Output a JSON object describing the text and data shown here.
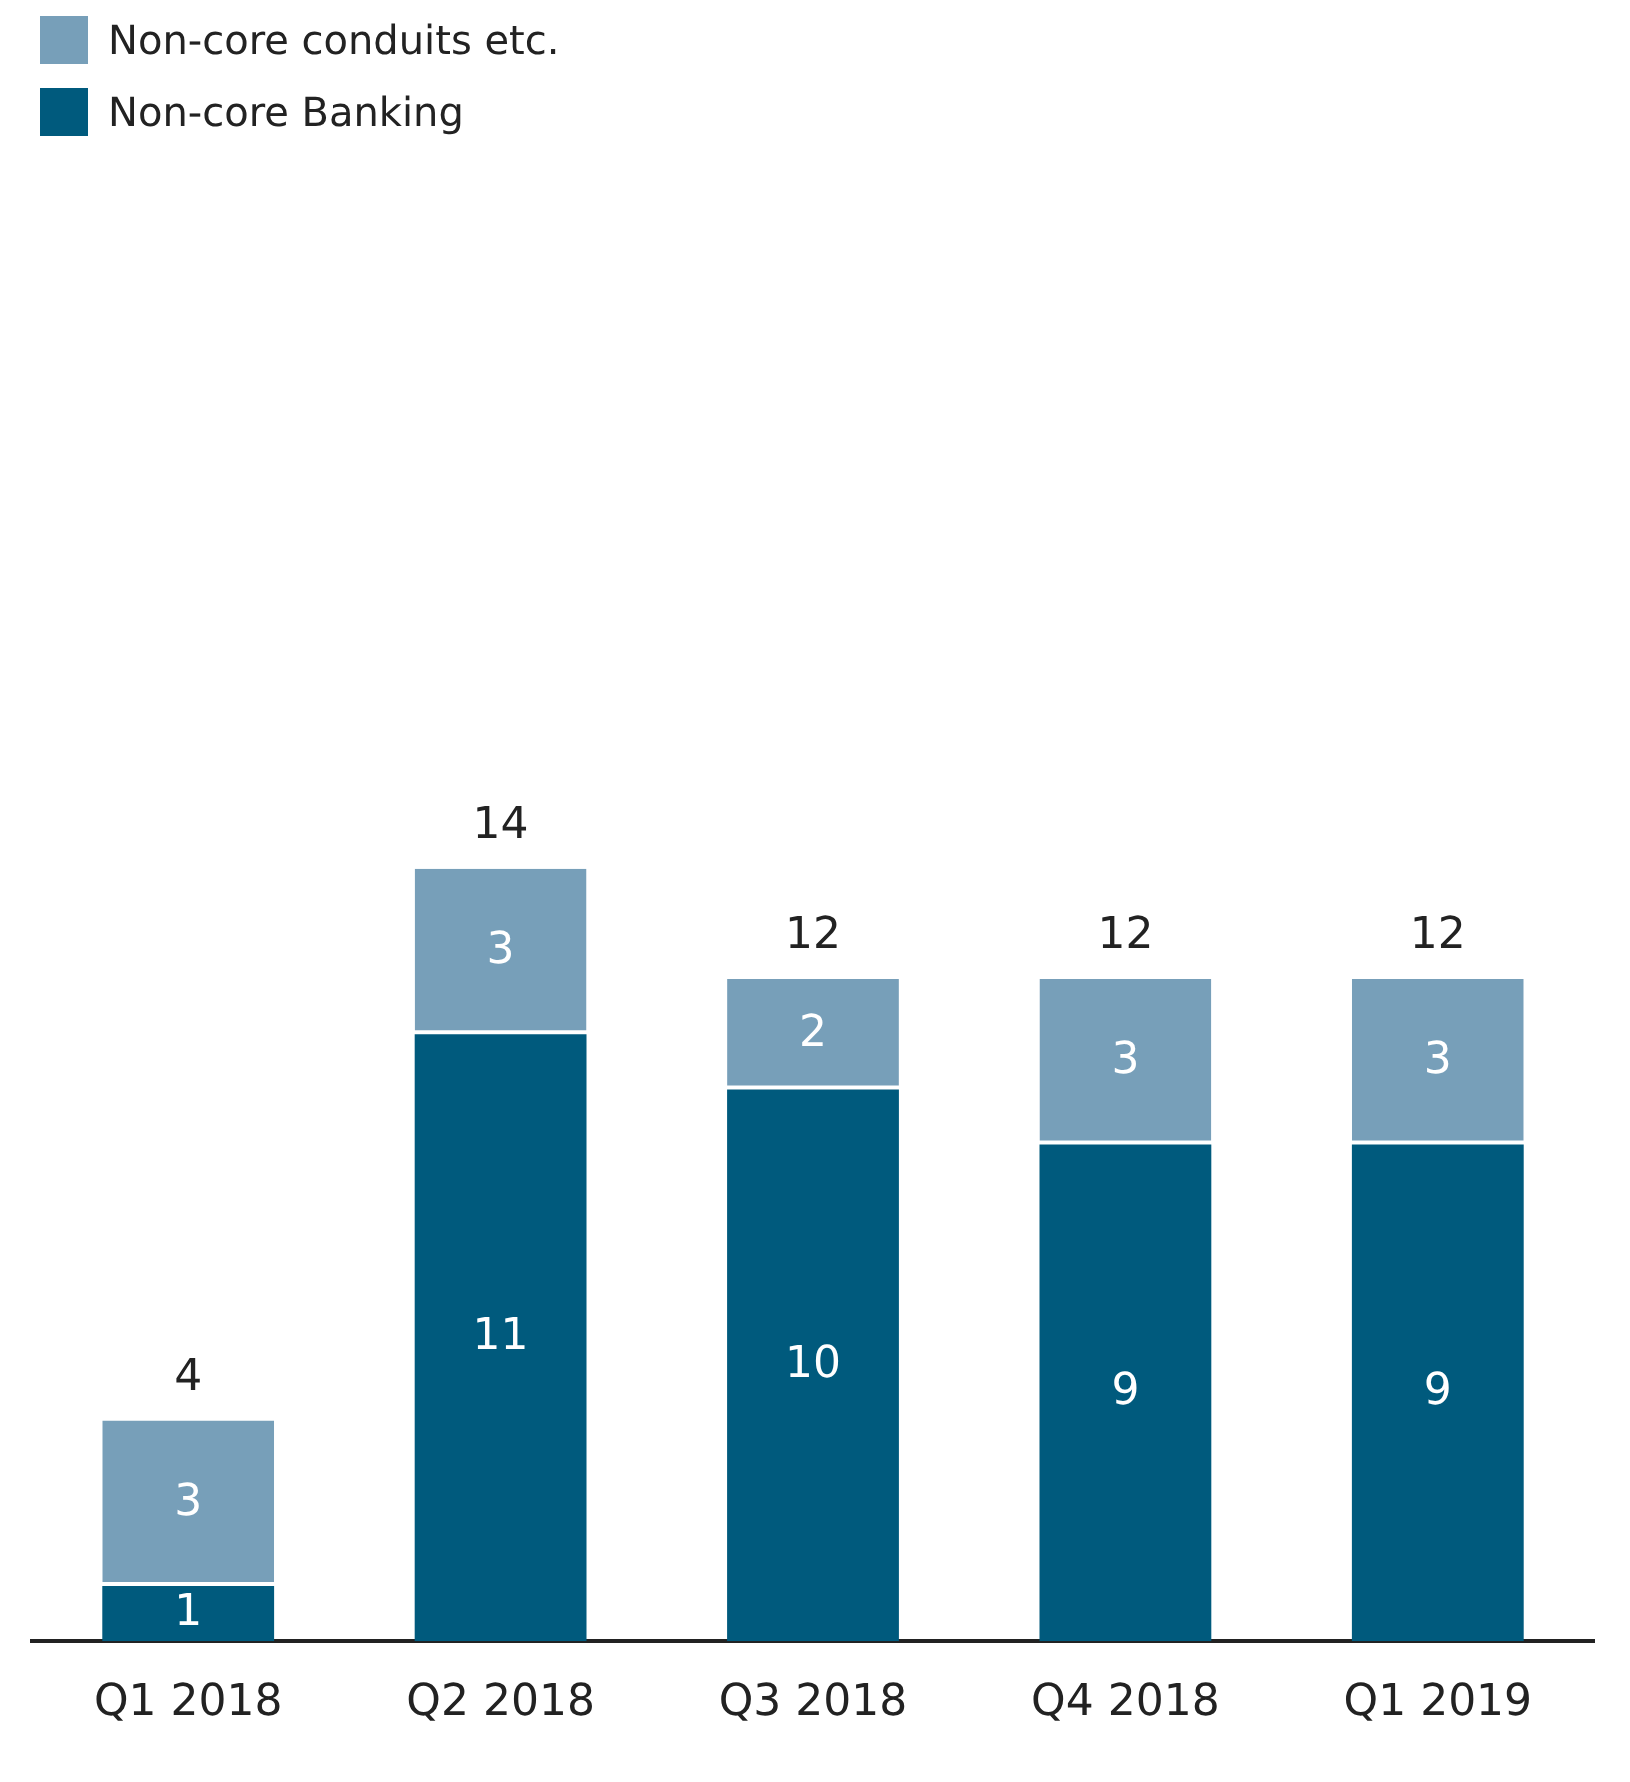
{
  "chart_data": {
    "type": "bar",
    "stacked": true,
    "relative": false,
    "categories": [
      "Q1 2018",
      "Q2 2018",
      "Q3 2018",
      "Q4 2018",
      "Q1 2019"
    ],
    "series": [
      {
        "name": "Non-core Banking",
        "color": "#005a7d",
        "values": [
          1,
          11,
          10,
          9,
          9
        ]
      },
      {
        "name": "Non-core conduits etc.",
        "color": "#779fb9",
        "values": [
          3,
          3,
          2,
          3,
          3
        ]
      }
    ],
    "totals": [
      "4",
      "14",
      "12",
      "12",
      "12"
    ],
    "data_labels": true,
    "legend": "top left",
    "grid": false
  }
}
